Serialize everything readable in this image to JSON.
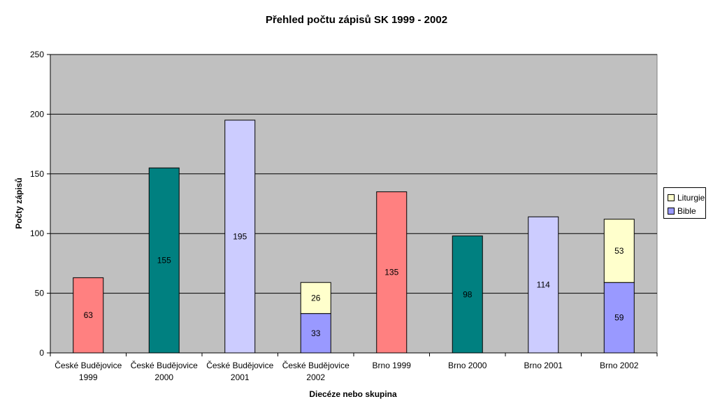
{
  "chart_data": {
    "type": "bar",
    "stacked": true,
    "title": "Přehled počtu zápisů SK 1999 - 2002",
    "xlabel": "Diecéze nebo skupina",
    "ylabel": "Počty zápisů",
    "ylim": [
      0,
      250
    ],
    "yticks": [
      0,
      50,
      100,
      150,
      200,
      250
    ],
    "grid": true,
    "legend_position": "right",
    "plot_background": "#C0C0C0",
    "categories": [
      [
        "České Budějovice",
        "1999"
      ],
      [
        "České Budějovice",
        "2000"
      ],
      [
        "České Budějovice",
        "2001"
      ],
      [
        "České Budějovice",
        "2002"
      ],
      [
        "Brno 1999"
      ],
      [
        "Brno 2000"
      ],
      [
        "Brno 2001"
      ],
      [
        "Brno 2002"
      ]
    ],
    "bars": [
      {
        "segments": [
          {
            "value": 63,
            "color": "#FF8080"
          }
        ]
      },
      {
        "segments": [
          {
            "value": 155,
            "color": "#008080"
          }
        ]
      },
      {
        "segments": [
          {
            "value": 195,
            "color": "#CCCCFF"
          }
        ]
      },
      {
        "segments": [
          {
            "value": 33,
            "color": "#9999FF",
            "series": "Bible"
          },
          {
            "value": 26,
            "color": "#FFFFCC",
            "series": "Liturgie"
          }
        ]
      },
      {
        "segments": [
          {
            "value": 135,
            "color": "#FF8080"
          }
        ]
      },
      {
        "segments": [
          {
            "value": 98,
            "color": "#008080"
          }
        ]
      },
      {
        "segments": [
          {
            "value": 114,
            "color": "#CCCCFF"
          }
        ]
      },
      {
        "segments": [
          {
            "value": 59,
            "color": "#9999FF",
            "series": "Bible"
          },
          {
            "value": 53,
            "color": "#FFFFCC",
            "series": "Liturgie"
          }
        ]
      }
    ],
    "legend": [
      {
        "name": "Liturgie",
        "color": "#FFFFCC"
      },
      {
        "name": "Bible",
        "color": "#9999FF"
      }
    ]
  }
}
